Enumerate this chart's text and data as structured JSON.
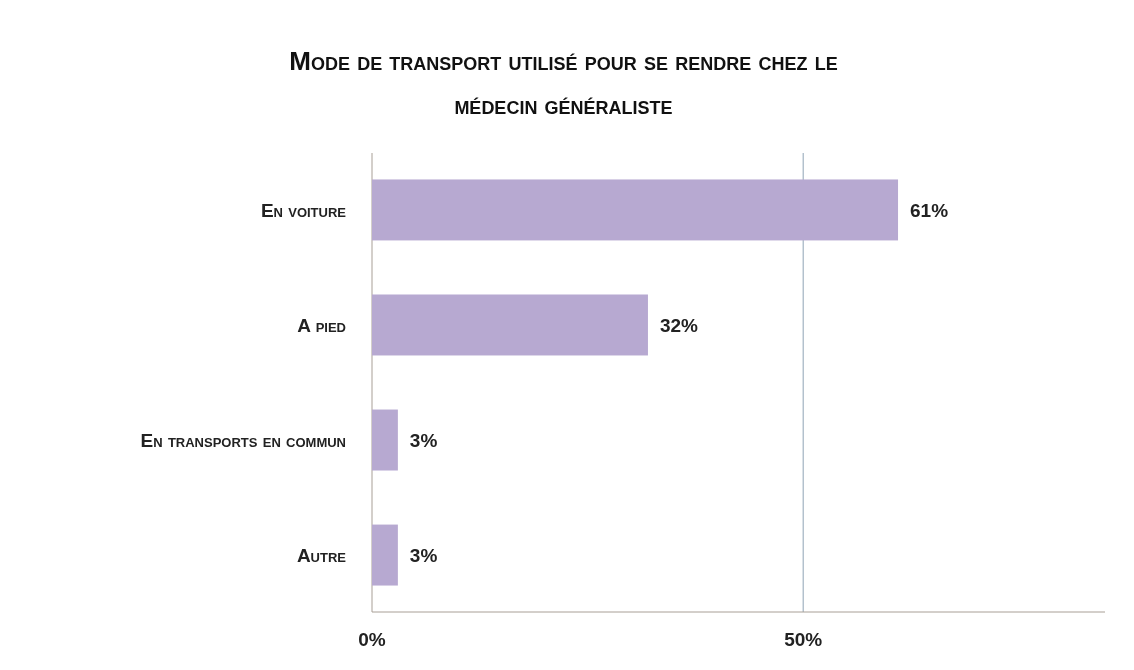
{
  "chart_data": {
    "type": "bar",
    "orientation": "horizontal",
    "title": "Mode de transport utilisé pour se rendre chez le médecin généraliste",
    "categories": [
      "En voiture",
      "A pied",
      "En transports en commun",
      "Autre"
    ],
    "values": [
      61,
      32,
      3,
      3
    ],
    "value_labels": [
      "61%",
      "32%",
      "3%",
      "3%"
    ],
    "color": "#b7a9d1",
    "xlim": [
      0,
      85
    ],
    "xticks": [
      {
        "value": 0,
        "label": "0%"
      },
      {
        "value": 50,
        "label": "50%"
      }
    ],
    "grid": "x"
  }
}
